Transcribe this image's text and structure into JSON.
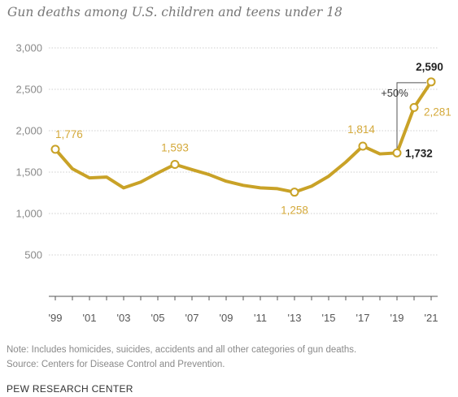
{
  "title": "Gun deaths among U.S. children and teens under 18",
  "note": "Note: Includes homicides, suicides, accidents and all other categories of gun deaths.",
  "source": "Source: Centers for Disease Control and Prevention.",
  "organization": "PEW RESEARCH CENTER",
  "colors": {
    "line": "#c9a227",
    "label": "#d4a93a",
    "highlight": "#222222",
    "grid": "#cfcfcf",
    "axis": "#555555",
    "bracket": "#555555"
  },
  "chart_data": {
    "type": "line",
    "title": "Gun deaths among U.S. children and teens under 18",
    "xlabel": "",
    "ylabel": "",
    "ylim": [
      0,
      3000
    ],
    "yticks": [
      500,
      1000,
      1500,
      2000,
      2500,
      3000
    ],
    "ytick_labels": [
      "500",
      "1,000",
      "1,500",
      "2,000",
      "2,500",
      "3,000"
    ],
    "xticks": [
      1999,
      2001,
      2003,
      2005,
      2007,
      2009,
      2011,
      2013,
      2015,
      2017,
      2019,
      2021
    ],
    "xtick_labels": [
      "'99",
      "'01",
      "'03",
      "'05",
      "'07",
      "'09",
      "'11",
      "'13",
      "'15",
      "'17",
      "'19",
      "'21"
    ],
    "grid": true,
    "x": [
      1999,
      2000,
      2001,
      2002,
      2003,
      2004,
      2005,
      2006,
      2007,
      2008,
      2009,
      2010,
      2011,
      2012,
      2013,
      2014,
      2015,
      2016,
      2017,
      2018,
      2019,
      2020,
      2021
    ],
    "series": [
      {
        "values": [
          1776,
          1540,
          1430,
          1440,
          1310,
          1380,
          1490,
          1593,
          1530,
          1470,
          1390,
          1340,
          1310,
          1300,
          1258,
          1330,
          1450,
          1620,
          1814,
          1720,
          1732,
          2281,
          2590
        ]
      }
    ],
    "data_labels": [
      {
        "x": 1999,
        "text": "1,776",
        "style": "accent"
      },
      {
        "x": 2006,
        "text": "1,593",
        "style": "accent"
      },
      {
        "x": 2013,
        "text": "1,258",
        "style": "accent"
      },
      {
        "x": 2017,
        "text": "1,814",
        "style": "accent"
      },
      {
        "x": 2019,
        "text": "1,732",
        "style": "highlight"
      },
      {
        "x": 2020,
        "text": "2,281",
        "style": "accent"
      },
      {
        "x": 2021,
        "text": "2,590",
        "style": "highlight"
      }
    ],
    "annotation": {
      "text": "+50%",
      "from_x": 2019,
      "to_x": 2021
    }
  }
}
